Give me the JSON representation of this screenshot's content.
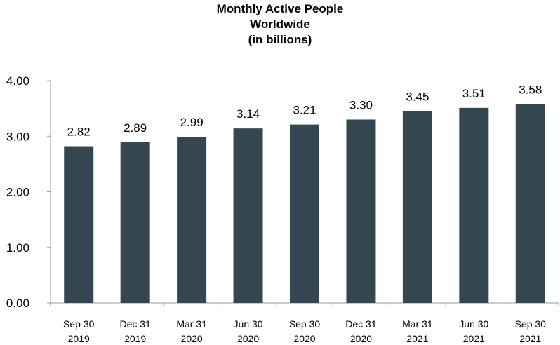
{
  "chart_data": {
    "type": "bar",
    "title_lines": [
      "Monthly Active People",
      "Worldwide",
      "(in billions)"
    ],
    "categories": [
      [
        "Sep 30",
        "2019"
      ],
      [
        "Dec 31",
        "2019"
      ],
      [
        "Mar 31",
        "2020"
      ],
      [
        "Jun 30",
        "2020"
      ],
      [
        "Sep 30",
        "2020"
      ],
      [
        "Dec 31",
        "2020"
      ],
      [
        "Mar 31",
        "2021"
      ],
      [
        "Jun 30",
        "2021"
      ],
      [
        "Sep 30",
        "2021"
      ]
    ],
    "values": [
      2.82,
      2.89,
      2.99,
      3.14,
      3.21,
      3.3,
      3.45,
      3.51,
      3.58
    ],
    "value_labels": [
      "2.82",
      "2.89",
      "2.99",
      "3.14",
      "3.21",
      "3.30",
      "3.45",
      "3.51",
      "3.58"
    ],
    "ylim": [
      0,
      4
    ],
    "yticks": [
      0,
      1,
      2,
      3,
      4
    ],
    "ytick_labels": [
      "0.00",
      "1.00",
      "2.00",
      "3.00",
      "4.00"
    ],
    "xlabel": "",
    "ylabel": "",
    "grid": false,
    "bar_color": "#34464f"
  }
}
